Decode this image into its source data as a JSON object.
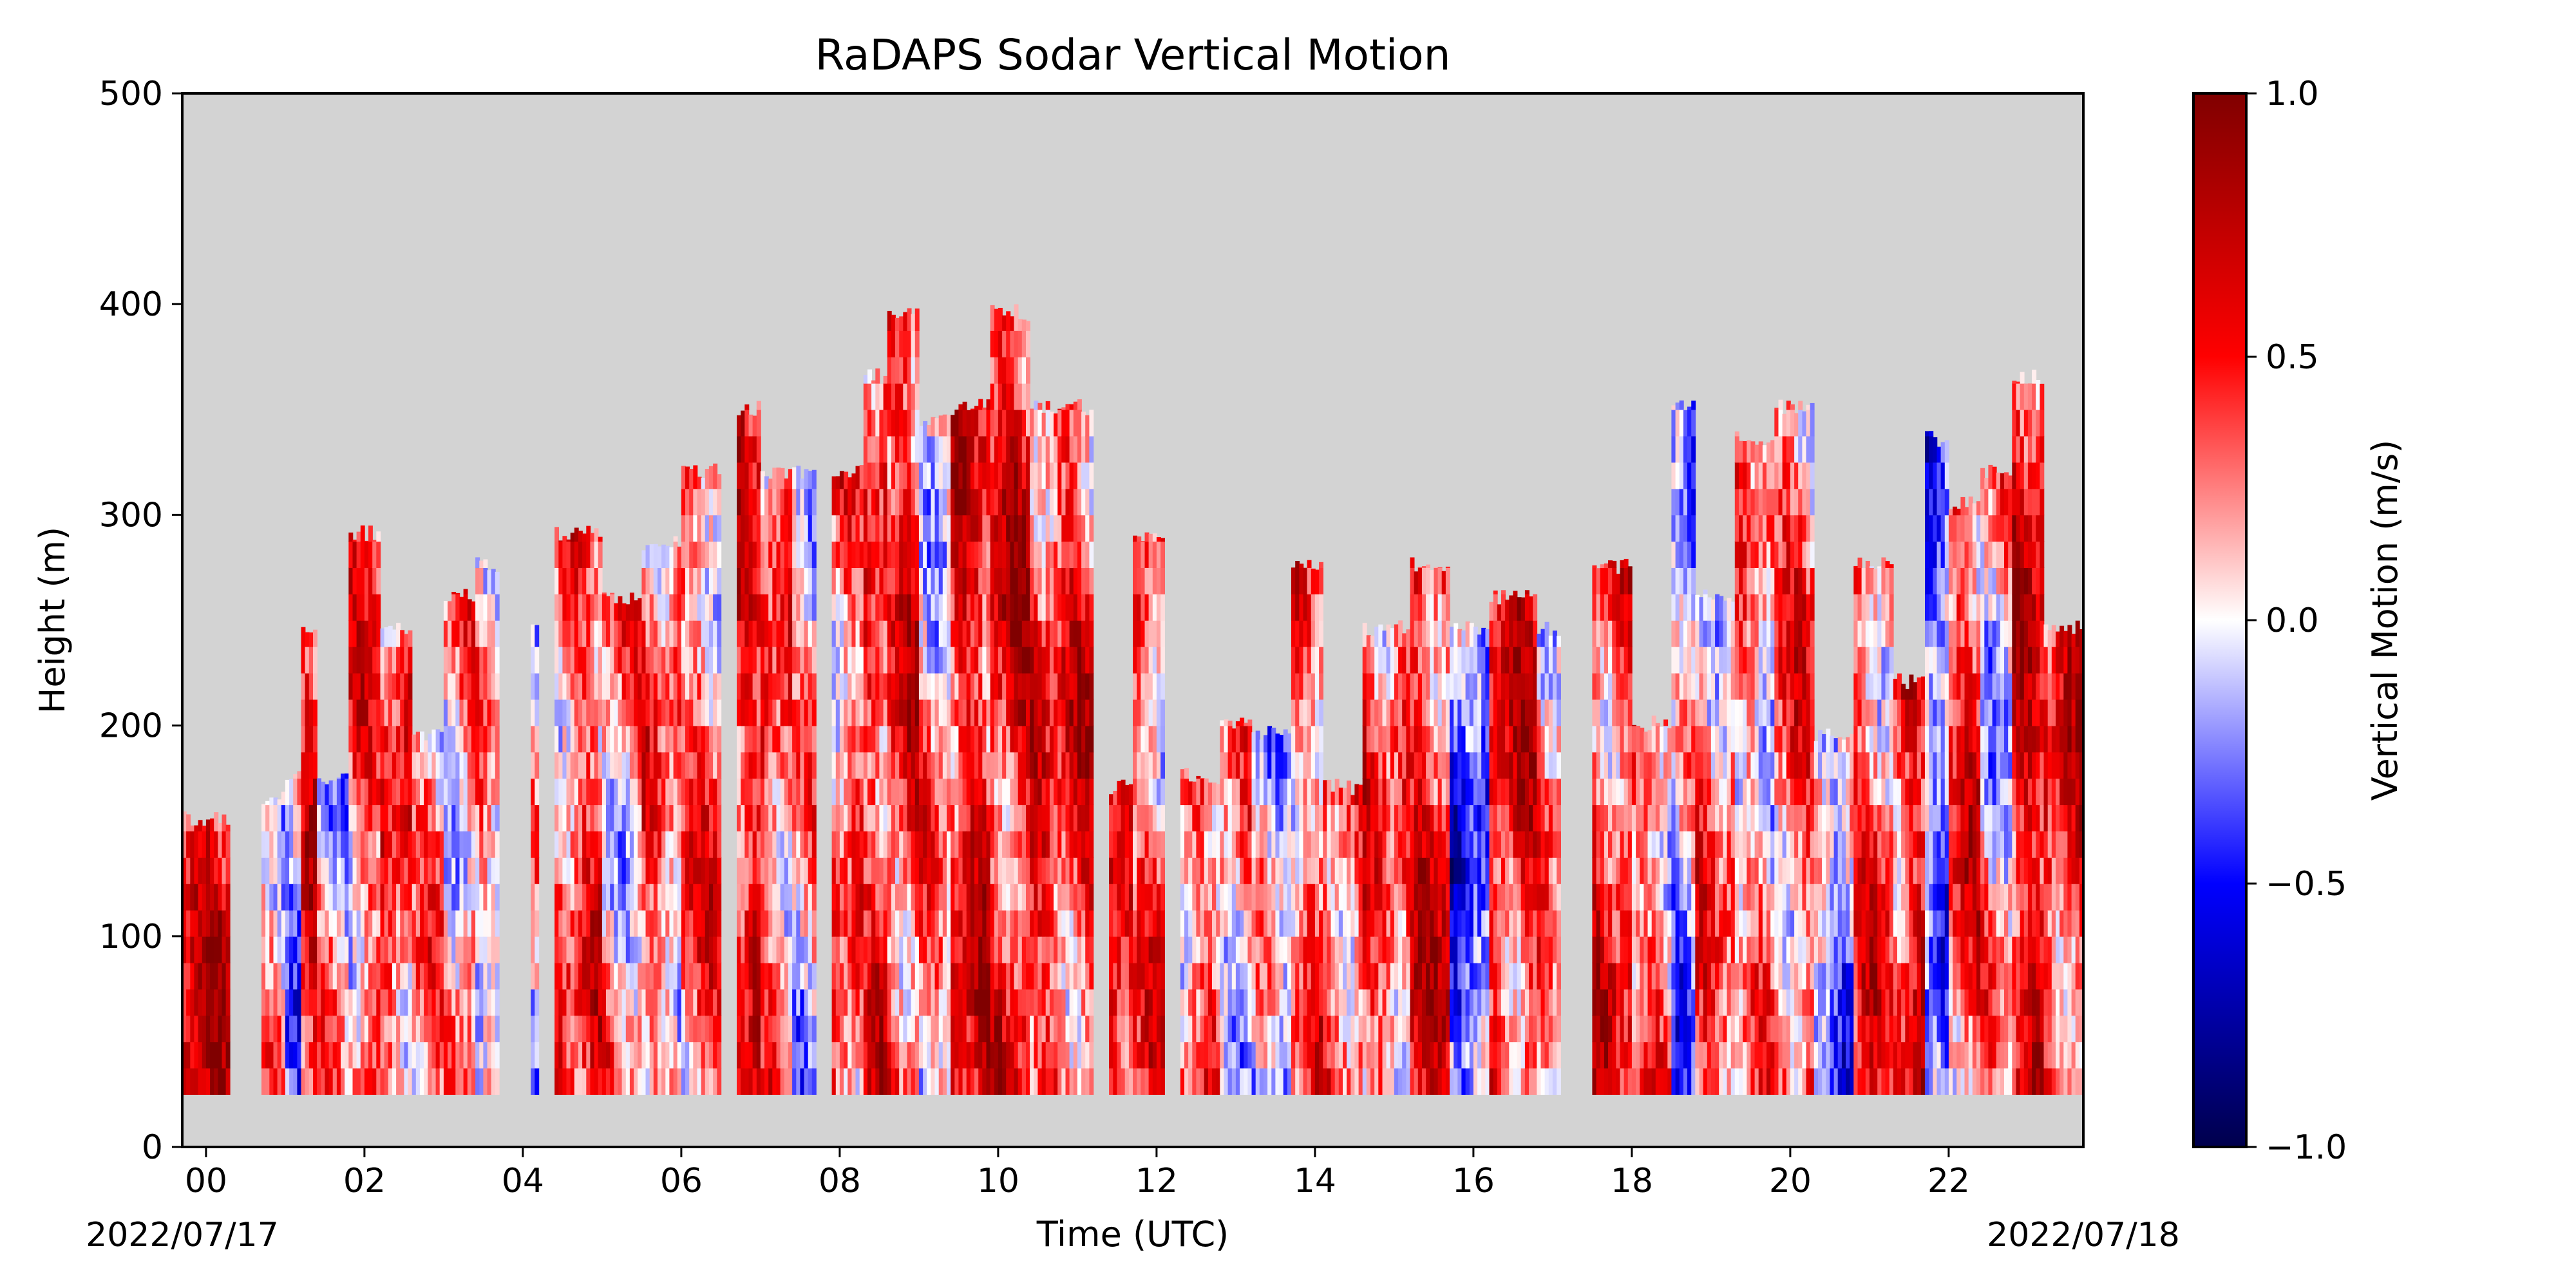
{
  "chart_data": {
    "type": "heatmap",
    "title": "RaDAPS Sodar Vertical Motion",
    "xlabel": "Time (UTC)",
    "ylabel": "Height (m)",
    "start_date_label": "2022/07/17",
    "end_date_label": "2022/07/18",
    "x_unit": "hour UTC",
    "xlim": [
      -0.3,
      23.7
    ],
    "ylim": [
      0,
      500
    ],
    "x_ticks": [
      "00",
      "02",
      "04",
      "06",
      "08",
      "10",
      "12",
      "14",
      "16",
      "18",
      "20",
      "22"
    ],
    "x_tick_values": [
      0,
      2,
      4,
      6,
      8,
      10,
      12,
      14,
      16,
      18,
      20,
      22
    ],
    "y_ticks": [
      "0",
      "100",
      "200",
      "300",
      "400",
      "500"
    ],
    "y_tick_values": [
      0,
      100,
      200,
      300,
      400,
      500
    ],
    "background_color": "#d3d3d3",
    "colorbar": {
      "label": "Vertical Motion (m/s)",
      "colormap": "seismic",
      "range": [
        -1.0,
        1.0
      ],
      "ticks": [
        "1.0",
        "0.5",
        "0.0",
        "−0.5",
        "−1.0"
      ],
      "tick_values": [
        1.0,
        0.5,
        0.0,
        -0.5,
        -1.0
      ],
      "colors": [
        "#00004c",
        "#0000ff",
        "#ffffff",
        "#ff0000",
        "#800000"
      ]
    },
    "data_min_height": 25,
    "profiles": [
      {
        "start": -0.3,
        "end": 0.3,
        "top": 160,
        "mean": 0.55
      },
      {
        "start": 0.7,
        "end": 1.0,
        "top": 170,
        "mean": 0.15
      },
      {
        "start": 1.0,
        "end": 1.2,
        "top": 180,
        "mean": -0.05
      },
      {
        "start": 1.2,
        "end": 1.4,
        "top": 250,
        "mean": 0.45
      },
      {
        "start": 1.4,
        "end": 1.8,
        "top": 180,
        "mean": 0.05
      },
      {
        "start": 1.8,
        "end": 2.2,
        "top": 295,
        "mean": 0.3
      },
      {
        "start": 2.2,
        "end": 2.6,
        "top": 250,
        "mean": 0.4
      },
      {
        "start": 2.6,
        "end": 3.0,
        "top": 200,
        "mean": 0.15
      },
      {
        "start": 3.0,
        "end": 3.4,
        "top": 265,
        "mean": 0.2
      },
      {
        "start": 3.4,
        "end": 3.7,
        "top": 280,
        "mean": 0.05
      },
      {
        "start": 4.1,
        "end": 4.2,
        "top": 250,
        "mean": -0.1
      },
      {
        "start": 4.4,
        "end": 5.0,
        "top": 295,
        "mean": 0.35
      },
      {
        "start": 5.0,
        "end": 5.5,
        "top": 265,
        "mean": 0.2
      },
      {
        "start": 5.5,
        "end": 6.0,
        "top": 290,
        "mean": 0.25
      },
      {
        "start": 6.0,
        "end": 6.5,
        "top": 325,
        "mean": 0.3
      },
      {
        "start": 6.7,
        "end": 7.0,
        "top": 355,
        "mean": 0.45
      },
      {
        "start": 7.0,
        "end": 7.4,
        "top": 325,
        "mean": 0.35
      },
      {
        "start": 7.4,
        "end": 7.7,
        "top": 325,
        "mean": 0.05
      },
      {
        "start": 7.9,
        "end": 8.3,
        "top": 325,
        "mean": 0.3
      },
      {
        "start": 8.3,
        "end": 8.6,
        "top": 370,
        "mean": 0.4
      },
      {
        "start": 8.6,
        "end": 9.0,
        "top": 400,
        "mean": 0.45
      },
      {
        "start": 9.0,
        "end": 9.4,
        "top": 350,
        "mean": 0.15
      },
      {
        "start": 9.4,
        "end": 9.9,
        "top": 355,
        "mean": 0.5
      },
      {
        "start": 9.9,
        "end": 10.4,
        "top": 400,
        "mean": 0.55
      },
      {
        "start": 10.4,
        "end": 11.2,
        "top": 355,
        "mean": 0.45
      },
      {
        "start": 11.4,
        "end": 11.7,
        "top": 175,
        "mean": 0.5
      },
      {
        "start": 11.7,
        "end": 12.1,
        "top": 295,
        "mean": 0.3
      },
      {
        "start": 12.3,
        "end": 12.8,
        "top": 180,
        "mean": 0.3
      },
      {
        "start": 12.8,
        "end": 13.2,
        "top": 205,
        "mean": 0.15
      },
      {
        "start": 13.2,
        "end": 13.7,
        "top": 200,
        "mean": -0.1
      },
      {
        "start": 13.7,
        "end": 14.1,
        "top": 280,
        "mean": 0.25
      },
      {
        "start": 14.1,
        "end": 14.6,
        "top": 175,
        "mean": 0.4
      },
      {
        "start": 14.6,
        "end": 15.2,
        "top": 250,
        "mean": 0.3
      },
      {
        "start": 15.2,
        "end": 15.7,
        "top": 280,
        "mean": 0.5
      },
      {
        "start": 15.7,
        "end": 16.2,
        "top": 250,
        "mean": -0.3
      },
      {
        "start": 16.2,
        "end": 16.8,
        "top": 265,
        "mean": 0.5
      },
      {
        "start": 16.8,
        "end": 17.1,
        "top": 250,
        "mean": 0.2
      },
      {
        "start": 17.5,
        "end": 18.0,
        "top": 280,
        "mean": 0.45
      },
      {
        "start": 18.0,
        "end": 18.5,
        "top": 205,
        "mean": 0.3
      },
      {
        "start": 18.5,
        "end": 18.8,
        "top": 355,
        "mean": -0.1
      },
      {
        "start": 18.8,
        "end": 19.3,
        "top": 265,
        "mean": 0.25
      },
      {
        "start": 19.3,
        "end": 19.8,
        "top": 340,
        "mean": 0.15
      },
      {
        "start": 19.8,
        "end": 20.3,
        "top": 355,
        "mean": 0.3
      },
      {
        "start": 20.3,
        "end": 20.8,
        "top": 200,
        "mean": -0.15
      },
      {
        "start": 20.8,
        "end": 21.3,
        "top": 280,
        "mean": 0.35
      },
      {
        "start": 21.3,
        "end": 21.7,
        "top": 225,
        "mean": 0.5
      },
      {
        "start": 21.7,
        "end": 22.0,
        "top": 340,
        "mean": -0.2
      },
      {
        "start": 22.0,
        "end": 22.4,
        "top": 310,
        "mean": 0.4
      },
      {
        "start": 22.4,
        "end": 22.8,
        "top": 325,
        "mean": 0.1
      },
      {
        "start": 22.8,
        "end": 23.2,
        "top": 370,
        "mean": 0.55
      },
      {
        "start": 23.2,
        "end": 23.7,
        "top": 250,
        "mean": 0.45
      }
    ]
  }
}
